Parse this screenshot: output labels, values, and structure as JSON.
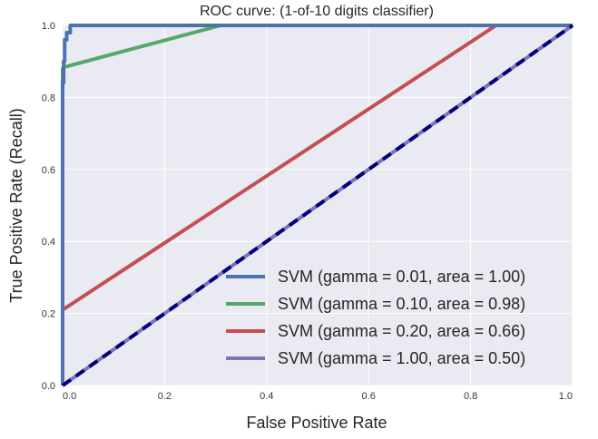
{
  "chart_data": {
    "type": "line",
    "title": "ROC curve: (1-of-10 digits classifier)",
    "xlabel": "False Positive Rate",
    "ylabel": "True Positive Rate (Recall)",
    "xlim": [
      0.0,
      1.0
    ],
    "ylim": [
      0.0,
      1.0
    ],
    "x_ticks": [
      "0.0",
      "0.2",
      "0.4",
      "0.6",
      "0.8",
      "1.0"
    ],
    "y_ticks": [
      "0.0",
      "0.2",
      "0.4",
      "0.6",
      "0.8",
      "1.0"
    ],
    "grid": true,
    "legend_position": "lower-right",
    "series": [
      {
        "name": "SVM (gamma = 0.01, area = 1.00)",
        "color": "#4c72b0",
        "x": [
          0.0,
          0.0,
          0.002,
          0.002,
          0.004,
          0.004,
          0.008,
          0.008,
          0.015,
          0.015,
          1.0
        ],
        "y": [
          0.0,
          0.84,
          0.84,
          0.9,
          0.9,
          0.96,
          0.96,
          0.98,
          0.98,
          1.0,
          1.0
        ]
      },
      {
        "name": "SVM (gamma = 0.10, area = 0.98)",
        "color": "#55a868",
        "x": [
          0.0,
          0.0,
          0.0,
          0.005,
          0.31,
          1.0
        ],
        "y": [
          0.0,
          0.2,
          0.88,
          0.885,
          1.0,
          1.0
        ]
      },
      {
        "name": "SVM (gamma = 0.20, area = 0.66)",
        "color": "#c44e52",
        "x": [
          0.0,
          0.0,
          0.0,
          0.85,
          1.0
        ],
        "y": [
          0.0,
          0.03,
          0.21,
          1.0,
          1.0
        ]
      },
      {
        "name": "SVM (gamma = 1.00, area = 0.50)",
        "color": "#8172b2",
        "x": [
          0.0,
          1.0
        ],
        "y": [
          0.0,
          1.0
        ]
      }
    ],
    "reference_line": {
      "x": [
        0.0,
        1.0
      ],
      "y": [
        0.0,
        1.0
      ],
      "color": "#000080",
      "style": "dashed"
    }
  }
}
